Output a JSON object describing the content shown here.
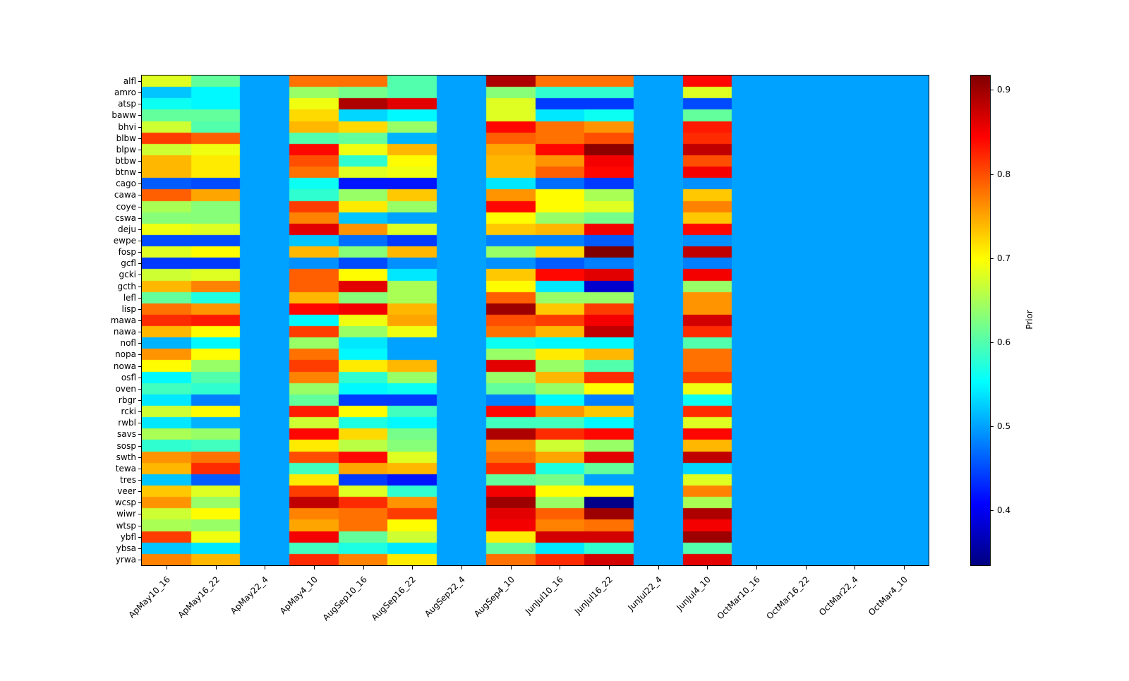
{
  "figure": {
    "background": "#ffffff"
  },
  "chart_data": {
    "type": "heatmap",
    "title": "",
    "xlabel": "",
    "ylabel": "",
    "colormap": "jet",
    "vmin": 0.335,
    "vmax": 0.917,
    "grid": false,
    "colorbar": {
      "label": "Prior",
      "position": "right",
      "ticks": [
        0.4,
        0.5,
        0.6,
        0.7,
        0.8,
        0.9
      ]
    },
    "columns": [
      "ApMay10_16",
      "ApMay16_22",
      "ApMay22_4",
      "ApMay4_10",
      "AugSep10_16",
      "AugSep16_22",
      "AugSep22_4",
      "AugSep4_10",
      "JunJul10_16",
      "JunJul16_22",
      "JunJul22_4",
      "JunJul4_10",
      "OctMar10_16",
      "OctMar16_22",
      "OctMar22_4",
      "OctMar4_10"
    ],
    "rows": [
      "alfl",
      "amro",
      "atsp",
      "baww",
      "bhvi",
      "blbw",
      "blpw",
      "btbw",
      "btnw",
      "cago",
      "cawa",
      "coye",
      "cswa",
      "deju",
      "ewpe",
      "fosp",
      "gcfl",
      "gcki",
      "gcth",
      "lefl",
      "lisp",
      "mawa",
      "nawa",
      "nofl",
      "nopa",
      "nowa",
      "osfl",
      "oven",
      "rbgr",
      "rcki",
      "rwbl",
      "savs",
      "sosp",
      "swth",
      "tewa",
      "tres",
      "veer",
      "wcsp",
      "wiwr",
      "wtsp",
      "ybfl",
      "ybsa",
      "yrwa"
    ],
    "values": [
      [
        0.68,
        0.61,
        0.5,
        0.78,
        0.78,
        0.6,
        0.5,
        0.89,
        0.78,
        0.78,
        0.5,
        0.84,
        0.5,
        0.5,
        0.5,
        0.5
      ],
      [
        0.52,
        0.55,
        0.5,
        0.64,
        0.62,
        0.6,
        0.5,
        0.63,
        0.58,
        0.58,
        0.5,
        0.68,
        0.5,
        0.5,
        0.5,
        0.5
      ],
      [
        0.56,
        0.55,
        0.5,
        0.69,
        0.89,
        0.86,
        0.5,
        0.68,
        0.44,
        0.44,
        0.5,
        0.45,
        0.5,
        0.5,
        0.5,
        0.5
      ],
      [
        0.61,
        0.61,
        0.5,
        0.72,
        0.53,
        0.55,
        0.5,
        0.68,
        0.54,
        0.56,
        0.5,
        0.61,
        0.5,
        0.5,
        0.5,
        0.5
      ],
      [
        0.67,
        0.6,
        0.5,
        0.74,
        0.72,
        0.64,
        0.5,
        0.84,
        0.78,
        0.76,
        0.5,
        0.83,
        0.5,
        0.5,
        0.5,
        0.5
      ],
      [
        0.81,
        0.79,
        0.5,
        0.6,
        0.61,
        0.51,
        0.5,
        0.79,
        0.78,
        0.8,
        0.5,
        0.82,
        0.5,
        0.5,
        0.5,
        0.5
      ],
      [
        0.67,
        0.69,
        0.5,
        0.84,
        0.69,
        0.74,
        0.5,
        0.75,
        0.84,
        0.91,
        0.5,
        0.88,
        0.5,
        0.5,
        0.5,
        0.5
      ],
      [
        0.74,
        0.71,
        0.5,
        0.8,
        0.58,
        0.7,
        0.5,
        0.74,
        0.76,
        0.85,
        0.5,
        0.8,
        0.5,
        0.5,
        0.5,
        0.5
      ],
      [
        0.74,
        0.71,
        0.5,
        0.78,
        0.68,
        0.69,
        0.5,
        0.74,
        0.79,
        0.84,
        0.5,
        0.85,
        0.5,
        0.5,
        0.5,
        0.5
      ],
      [
        0.46,
        0.45,
        0.5,
        0.56,
        0.42,
        0.42,
        0.5,
        0.54,
        0.47,
        0.44,
        0.5,
        0.49,
        0.5,
        0.5,
        0.5,
        0.5
      ],
      [
        0.79,
        0.75,
        0.5,
        0.58,
        0.64,
        0.73,
        0.5,
        0.76,
        0.7,
        0.65,
        0.5,
        0.73,
        0.5,
        0.5,
        0.5,
        0.5
      ],
      [
        0.65,
        0.63,
        0.5,
        0.81,
        0.71,
        0.64,
        0.5,
        0.84,
        0.7,
        0.68,
        0.5,
        0.77,
        0.5,
        0.5,
        0.5,
        0.5
      ],
      [
        0.63,
        0.63,
        0.5,
        0.77,
        0.52,
        0.5,
        0.5,
        0.7,
        0.64,
        0.62,
        0.5,
        0.73,
        0.5,
        0.5,
        0.5,
        0.5
      ],
      [
        0.69,
        0.68,
        0.5,
        0.86,
        0.76,
        0.68,
        0.5,
        0.73,
        0.74,
        0.85,
        0.5,
        0.84,
        0.5,
        0.5,
        0.5,
        0.5
      ],
      [
        0.45,
        0.45,
        0.5,
        0.52,
        0.47,
        0.44,
        0.5,
        0.48,
        0.48,
        0.46,
        0.5,
        0.49,
        0.5,
        0.5,
        0.5,
        0.5
      ],
      [
        0.68,
        0.7,
        0.5,
        0.74,
        0.63,
        0.74,
        0.5,
        0.64,
        0.72,
        0.92,
        0.5,
        0.88,
        0.5,
        0.5,
        0.5,
        0.5
      ],
      [
        0.44,
        0.44,
        0.5,
        0.49,
        0.45,
        0.49,
        0.5,
        0.49,
        0.46,
        0.48,
        0.5,
        0.48,
        0.5,
        0.5,
        0.5,
        0.5
      ],
      [
        0.67,
        0.68,
        0.5,
        0.79,
        0.7,
        0.54,
        0.5,
        0.73,
        0.84,
        0.86,
        0.5,
        0.85,
        0.5,
        0.5,
        0.5,
        0.5
      ],
      [
        0.74,
        0.77,
        0.5,
        0.79,
        0.86,
        0.65,
        0.5,
        0.7,
        0.54,
        0.38,
        0.5,
        0.64,
        0.5,
        0.5,
        0.5,
        0.5
      ],
      [
        0.61,
        0.57,
        0.5,
        0.74,
        0.63,
        0.65,
        0.5,
        0.79,
        0.64,
        0.64,
        0.5,
        0.76,
        0.5,
        0.5,
        0.5,
        0.5
      ],
      [
        0.78,
        0.76,
        0.5,
        0.84,
        0.85,
        0.74,
        0.5,
        0.9,
        0.73,
        0.81,
        0.5,
        0.76,
        0.5,
        0.5,
        0.5,
        0.5
      ],
      [
        0.82,
        0.83,
        0.5,
        0.55,
        0.69,
        0.75,
        0.5,
        0.8,
        0.81,
        0.85,
        0.5,
        0.87,
        0.5,
        0.5,
        0.5,
        0.5
      ],
      [
        0.74,
        0.7,
        0.5,
        0.81,
        0.64,
        0.69,
        0.5,
        0.78,
        0.74,
        0.88,
        0.5,
        0.82,
        0.5,
        0.5,
        0.5,
        0.5
      ],
      [
        0.51,
        0.55,
        0.5,
        0.64,
        0.54,
        0.5,
        0.5,
        0.56,
        0.55,
        0.55,
        0.5,
        0.6,
        0.5,
        0.5,
        0.5,
        0.5
      ],
      [
        0.76,
        0.7,
        0.5,
        0.78,
        0.55,
        0.5,
        0.5,
        0.64,
        0.71,
        0.74,
        0.5,
        0.78,
        0.5,
        0.5,
        0.5,
        0.5
      ],
      [
        0.7,
        0.64,
        0.5,
        0.81,
        0.71,
        0.74,
        0.5,
        0.86,
        0.64,
        0.6,
        0.5,
        0.78,
        0.5,
        0.5,
        0.5,
        0.5
      ],
      [
        0.55,
        0.6,
        0.5,
        0.77,
        0.58,
        0.64,
        0.5,
        0.64,
        0.74,
        0.82,
        0.5,
        0.81,
        0.5,
        0.5,
        0.5,
        0.5
      ],
      [
        0.59,
        0.58,
        0.5,
        0.64,
        0.55,
        0.56,
        0.5,
        0.61,
        0.64,
        0.7,
        0.5,
        0.69,
        0.5,
        0.5,
        0.5,
        0.5
      ],
      [
        0.54,
        0.48,
        0.5,
        0.61,
        0.44,
        0.44,
        0.5,
        0.48,
        0.55,
        0.48,
        0.5,
        0.56,
        0.5,
        0.5,
        0.5,
        0.5
      ],
      [
        0.67,
        0.7,
        0.5,
        0.83,
        0.7,
        0.59,
        0.5,
        0.84,
        0.76,
        0.73,
        0.5,
        0.82,
        0.5,
        0.5,
        0.5,
        0.5
      ],
      [
        0.54,
        0.51,
        0.5,
        0.67,
        0.57,
        0.55,
        0.5,
        0.59,
        0.59,
        0.55,
        0.5,
        0.68,
        0.5,
        0.5,
        0.5,
        0.5
      ],
      [
        0.65,
        0.64,
        0.5,
        0.84,
        0.72,
        0.62,
        0.5,
        0.89,
        0.82,
        0.84,
        0.5,
        0.84,
        0.5,
        0.5,
        0.5,
        0.5
      ],
      [
        0.58,
        0.59,
        0.5,
        0.71,
        0.66,
        0.63,
        0.5,
        0.76,
        0.67,
        0.64,
        0.5,
        0.74,
        0.5,
        0.5,
        0.5,
        0.5
      ],
      [
        0.76,
        0.78,
        0.5,
        0.8,
        0.84,
        0.68,
        0.5,
        0.78,
        0.75,
        0.86,
        0.5,
        0.88,
        0.5,
        0.5,
        0.5,
        0.5
      ],
      [
        0.74,
        0.82,
        0.5,
        0.59,
        0.75,
        0.74,
        0.5,
        0.82,
        0.57,
        0.61,
        0.5,
        0.53,
        0.5,
        0.5,
        0.5,
        0.5
      ],
      [
        0.52,
        0.46,
        0.5,
        0.71,
        0.44,
        0.42,
        0.5,
        0.61,
        0.62,
        0.5,
        0.5,
        0.68,
        0.5,
        0.5,
        0.5,
        0.5
      ],
      [
        0.73,
        0.68,
        0.5,
        0.81,
        0.68,
        0.58,
        0.5,
        0.85,
        0.7,
        0.7,
        0.5,
        0.77,
        0.5,
        0.5,
        0.5,
        0.5
      ],
      [
        0.76,
        0.64,
        0.5,
        0.88,
        0.82,
        0.76,
        0.5,
        0.9,
        0.64,
        0.34,
        0.5,
        0.65,
        0.5,
        0.5,
        0.5,
        0.5
      ],
      [
        0.67,
        0.7,
        0.5,
        0.77,
        0.78,
        0.81,
        0.5,
        0.86,
        0.79,
        0.9,
        0.5,
        0.89,
        0.5,
        0.5,
        0.5,
        0.5
      ],
      [
        0.65,
        0.64,
        0.5,
        0.75,
        0.78,
        0.7,
        0.5,
        0.85,
        0.77,
        0.78,
        0.5,
        0.85,
        0.5,
        0.5,
        0.5,
        0.5
      ],
      [
        0.81,
        0.69,
        0.5,
        0.85,
        0.61,
        0.67,
        0.5,
        0.71,
        0.87,
        0.87,
        0.5,
        0.9,
        0.5,
        0.5,
        0.5,
        0.5
      ],
      [
        0.52,
        0.54,
        0.5,
        0.59,
        0.57,
        0.54,
        0.5,
        0.61,
        0.54,
        0.58,
        0.5,
        0.6,
        0.5,
        0.5,
        0.5,
        0.5
      ],
      [
        0.77,
        0.74,
        0.5,
        0.82,
        0.77,
        0.71,
        0.5,
        0.78,
        0.82,
        0.87,
        0.5,
        0.86,
        0.5,
        0.5,
        0.5,
        0.5
      ]
    ]
  }
}
